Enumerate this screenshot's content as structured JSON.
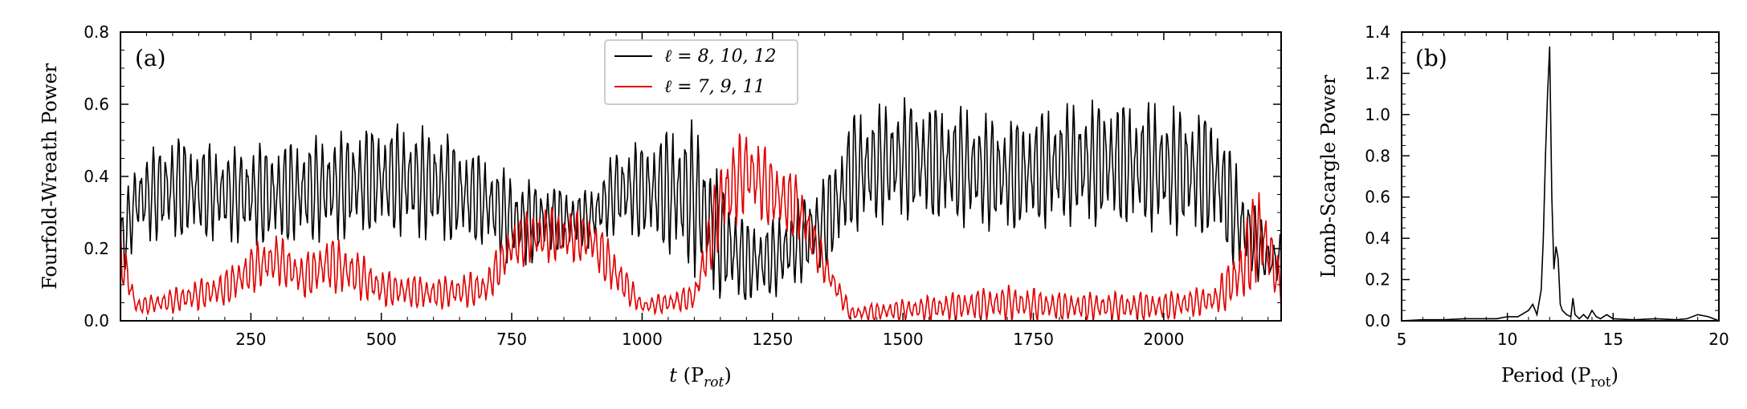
{
  "chart_data": [
    {
      "type": "line",
      "panel_label": "(a)",
      "xlabel": "t (P_rot)",
      "xlabel_main": "t",
      "xlabel_rest": "(P",
      "xlabel_sub": "rot",
      "xlabel_close": ")",
      "ylabel": "Fourfold-Wreath Power",
      "xlim": [
        0,
        2225
      ],
      "ylim": [
        0.0,
        0.8
      ],
      "xticks": [
        "250",
        "500",
        "750",
        "1000",
        "1250",
        "1500",
        "1750",
        "2000"
      ],
      "yticks": [
        "0.0",
        "0.2",
        "0.4",
        "0.6",
        "0.8"
      ],
      "legend_position": "top-center",
      "series": [
        {
          "name": "ℓ = 8, 10, 12",
          "color": "#000000",
          "oscillation_period": 12,
          "envelope_x": [
            0,
            30,
            100,
            200,
            300,
            400,
            500,
            600,
            700,
            760,
            820,
            900,
            950,
            1000,
            1050,
            1100,
            1150,
            1200,
            1250,
            1300,
            1350,
            1380,
            1400,
            1500,
            1600,
            1700,
            1800,
            1900,
            2000,
            2100,
            2150,
            2200,
            2225
          ],
          "envelope_min": [
            0.1,
            0.22,
            0.22,
            0.22,
            0.2,
            0.22,
            0.24,
            0.22,
            0.2,
            0.14,
            0.18,
            0.2,
            0.24,
            0.22,
            0.18,
            0.12,
            0.06,
            0.04,
            0.06,
            0.1,
            0.14,
            0.18,
            0.24,
            0.28,
            0.26,
            0.24,
            0.26,
            0.26,
            0.24,
            0.22,
            0.12,
            0.1,
            0.1
          ],
          "envelope_max": [
            0.3,
            0.45,
            0.52,
            0.48,
            0.5,
            0.52,
            0.55,
            0.54,
            0.46,
            0.4,
            0.38,
            0.36,
            0.48,
            0.5,
            0.54,
            0.56,
            0.4,
            0.28,
            0.28,
            0.34,
            0.4,
            0.5,
            0.58,
            0.62,
            0.6,
            0.56,
            0.6,
            0.62,
            0.6,
            0.58,
            0.4,
            0.24,
            0.24
          ]
        },
        {
          "name": "ℓ = 7, 9, 11",
          "color": "#e00000",
          "oscillation_period": 12,
          "envelope_x": [
            0,
            30,
            100,
            200,
            260,
            300,
            350,
            400,
            450,
            500,
            600,
            700,
            750,
            800,
            900,
            950,
            1000,
            1050,
            1100,
            1150,
            1200,
            1250,
            1300,
            1350,
            1400,
            1500,
            1600,
            1700,
            1800,
            1900,
            2000,
            2100,
            2150,
            2180,
            2200,
            2225
          ],
          "envelope_min": [
            0.1,
            0.02,
            0.02,
            0.04,
            0.08,
            0.1,
            0.06,
            0.08,
            0.06,
            0.04,
            0.03,
            0.04,
            0.14,
            0.16,
            0.16,
            0.06,
            0.02,
            0.02,
            0.03,
            0.2,
            0.3,
            0.25,
            0.22,
            0.1,
            0.0,
            0.0,
            0.0,
            0.0,
            0.0,
            0.0,
            0.0,
            0.02,
            0.04,
            0.1,
            0.1,
            0.05
          ],
          "envelope_max": [
            0.28,
            0.06,
            0.09,
            0.14,
            0.22,
            0.24,
            0.18,
            0.24,
            0.2,
            0.14,
            0.12,
            0.14,
            0.28,
            0.32,
            0.3,
            0.2,
            0.06,
            0.08,
            0.1,
            0.46,
            0.54,
            0.46,
            0.4,
            0.2,
            0.04,
            0.06,
            0.08,
            0.1,
            0.08,
            0.08,
            0.08,
            0.1,
            0.24,
            0.4,
            0.3,
            0.14
          ]
        }
      ]
    },
    {
      "type": "line",
      "panel_label": "(b)",
      "xlabel": "Period (P_rot)",
      "xlabel_main": "Period (P",
      "xlabel_sub": "rot",
      "xlabel_close": ")",
      "ylabel": "Lomb-Scargle Power",
      "xlim": [
        5,
        20
      ],
      "ylim": [
        0.0,
        1.4
      ],
      "xticks": [
        "5",
        "10",
        "15",
        "20"
      ],
      "yticks": [
        "0.0",
        "0.2",
        "0.4",
        "0.6",
        "0.8",
        "1.0",
        "1.2",
        "1.4"
      ],
      "series": [
        {
          "name": "",
          "color": "#000000",
          "x": [
            5,
            6,
            7,
            8,
            9,
            9.5,
            10,
            10.5,
            11,
            11.2,
            11.4,
            11.6,
            11.7,
            11.8,
            11.9,
            12.0,
            12.1,
            12.2,
            12.3,
            12.4,
            12.5,
            12.6,
            12.8,
            13.0,
            13.1,
            13.2,
            13.4,
            13.6,
            13.8,
            14.0,
            14.2,
            14.4,
            14.7,
            15,
            16,
            17,
            18,
            18.5,
            19,
            19.5,
            20
          ],
          "y": [
            0.0,
            0.005,
            0.005,
            0.01,
            0.01,
            0.01,
            0.02,
            0.02,
            0.05,
            0.08,
            0.03,
            0.15,
            0.4,
            0.8,
            1.1,
            1.33,
            0.6,
            0.25,
            0.36,
            0.3,
            0.08,
            0.05,
            0.03,
            0.02,
            0.11,
            0.03,
            0.01,
            0.03,
            0.01,
            0.05,
            0.02,
            0.01,
            0.03,
            0.01,
            0.005,
            0.01,
            0.005,
            0.01,
            0.03,
            0.02,
            0.0
          ]
        }
      ]
    }
  ]
}
